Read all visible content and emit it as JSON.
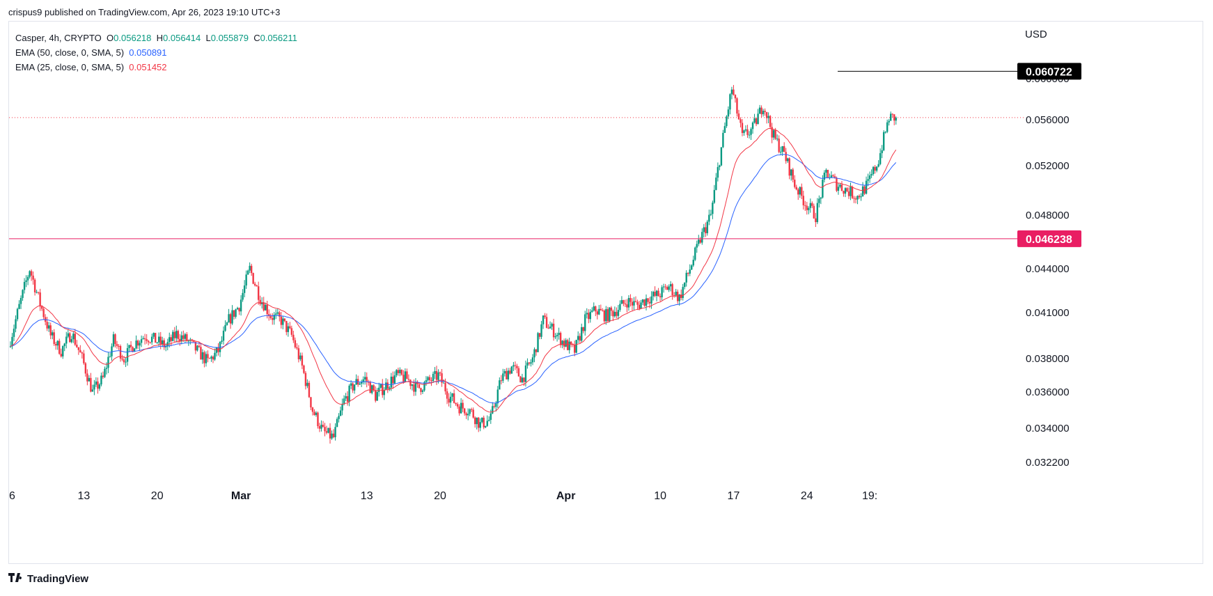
{
  "header": {
    "publisher": "crispus9 published on TradingView.com, Apr 26, 2023 19:10 UTC+3"
  },
  "legend": {
    "symbol": "Casper, 4h, CRYPTO",
    "o_label": "O",
    "o_value": "0.056218",
    "h_label": "H",
    "h_value": "0.056414",
    "l_label": "L",
    "l_value": "0.055879",
    "c_label": "C",
    "c_value": "0.056211",
    "ema50_label": "EMA (50, close, 0, SMA, 5)",
    "ema50_value": "0.050891",
    "ema25_label": "EMA (25, close, 0, SMA, 5)",
    "ema25_value": "0.051452"
  },
  "footer": {
    "logo_text": "TradingView"
  },
  "colors": {
    "up": "#089981",
    "down": "#f23645",
    "ema50": "#2962ff",
    "ema25": "#f23645",
    "hline": "#e91e63",
    "badge_dark": "#000000"
  },
  "chart_data": {
    "type": "candlestick",
    "currency": "USD",
    "y_ticks": [
      "0.060000",
      "0.056000",
      "0.052000",
      "0.048000",
      "0.044000",
      "0.041000",
      "0.038000",
      "0.036000",
      "0.034000",
      "0.032200"
    ],
    "y_tick_values": [
      0.06,
      0.056,
      0.052,
      0.048,
      0.044,
      0.041,
      0.038,
      0.036,
      0.034,
      0.0322
    ],
    "x_ticks": [
      {
        "label": "6",
        "day": 0,
        "bold": false
      },
      {
        "label": "13",
        "day": 7,
        "bold": false
      },
      {
        "label": "20",
        "day": 14,
        "bold": false
      },
      {
        "label": "Mar",
        "day": 22,
        "bold": true
      },
      {
        "label": "13",
        "day": 34,
        "bold": false
      },
      {
        "label": "20",
        "day": 41,
        "bold": false
      },
      {
        "label": "Apr",
        "day": 53,
        "bold": true
      },
      {
        "label": "10",
        "day": 62,
        "bold": false
      },
      {
        "label": "17",
        "day": 69,
        "bold": false
      },
      {
        "label": "24",
        "day": 76,
        "bold": false
      },
      {
        "label": "19:",
        "day": 82,
        "bold": false
      }
    ],
    "horizontal_lines": [
      {
        "value": 0.060722,
        "label": "0.060722",
        "style": "solid-short"
      },
      {
        "value": 0.046238,
        "label": "0.046238",
        "style": "solid"
      }
    ],
    "last_price": 0.056211,
    "close_path": [
      [
        0,
        0.0388
      ],
      [
        2,
        0.044
      ],
      [
        3,
        0.0416
      ],
      [
        4,
        0.0395
      ],
      [
        5,
        0.0385
      ],
      [
        6,
        0.0397
      ],
      [
        7,
        0.038
      ],
      [
        8,
        0.036
      ],
      [
        9,
        0.0368
      ],
      [
        10,
        0.0392
      ],
      [
        11,
        0.038
      ],
      [
        12,
        0.039
      ],
      [
        13,
        0.0395
      ],
      [
        14,
        0.0392
      ],
      [
        15,
        0.0388
      ],
      [
        16,
        0.0396
      ],
      [
        17,
        0.0392
      ],
      [
        18,
        0.0385
      ],
      [
        19,
        0.0378
      ],
      [
        20,
        0.0385
      ],
      [
        21,
        0.0405
      ],
      [
        22,
        0.0415
      ],
      [
        23,
        0.044
      ],
      [
        24,
        0.042
      ],
      [
        25,
        0.0408
      ],
      [
        26,
        0.0405
      ],
      [
        27,
        0.0395
      ],
      [
        28,
        0.0375
      ],
      [
        29,
        0.035
      ],
      [
        30,
        0.0338
      ],
      [
        31,
        0.0335
      ],
      [
        32,
        0.0355
      ],
      [
        33,
        0.0365
      ],
      [
        34,
        0.0368
      ],
      [
        35,
        0.0358
      ],
      [
        36,
        0.0364
      ],
      [
        37,
        0.037
      ],
      [
        38,
        0.0368
      ],
      [
        39,
        0.0362
      ],
      [
        40,
        0.0366
      ],
      [
        41,
        0.037
      ],
      [
        42,
        0.0358
      ],
      [
        43,
        0.0352
      ],
      [
        44,
        0.035
      ],
      [
        45,
        0.0342
      ],
      [
        46,
        0.0345
      ],
      [
        47,
        0.0368
      ],
      [
        48,
        0.0375
      ],
      [
        49,
        0.0368
      ],
      [
        50,
        0.038
      ],
      [
        51,
        0.0405
      ],
      [
        52,
        0.0398
      ],
      [
        53,
        0.039
      ],
      [
        54,
        0.0385
      ],
      [
        55,
        0.0405
      ],
      [
        56,
        0.0412
      ],
      [
        57,
        0.0408
      ],
      [
        58,
        0.0412
      ],
      [
        59,
        0.0418
      ],
      [
        60,
        0.0415
      ],
      [
        61,
        0.042
      ],
      [
        62,
        0.0422
      ],
      [
        63,
        0.0428
      ],
      [
        64,
        0.042
      ],
      [
        65,
        0.044
      ],
      [
        66,
        0.0462
      ],
      [
        67,
        0.048
      ],
      [
        68,
        0.0535
      ],
      [
        69,
        0.059
      ],
      [
        70,
        0.0545
      ],
      [
        71,
        0.0552
      ],
      [
        72,
        0.0575
      ],
      [
        73,
        0.0545
      ],
      [
        74,
        0.053
      ],
      [
        75,
        0.0505
      ],
      [
        76,
        0.049
      ],
      [
        77,
        0.048
      ],
      [
        78,
        0.0515
      ],
      [
        79,
        0.0505
      ],
      [
        80,
        0.05
      ],
      [
        81,
        0.0495
      ],
      [
        82,
        0.0505
      ],
      [
        83,
        0.0525
      ],
      [
        84,
        0.0562
      ]
    ],
    "ema25_last": 0.051452,
    "ema50_last": 0.050891
  }
}
